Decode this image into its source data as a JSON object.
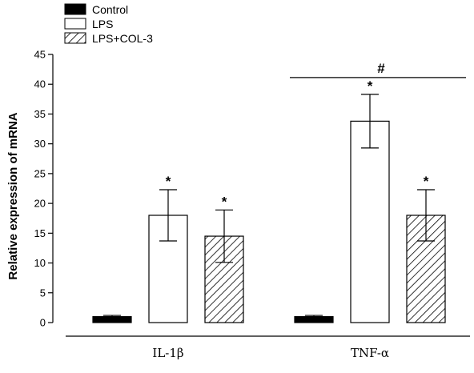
{
  "chart_data": {
    "type": "bar",
    "title": "",
    "xlabel": "",
    "ylabel": "Relative expression of mRNA",
    "ylim": [
      0,
      45
    ],
    "yticks": [
      0,
      5,
      10,
      15,
      20,
      25,
      30,
      35,
      40,
      45
    ],
    "grid": false,
    "legend_position": "top-left",
    "categories": [
      "IL-1β",
      "TNF-α"
    ],
    "series": [
      {
        "name": "Control",
        "fill": "solid",
        "color": "#000000",
        "values": [
          1.0,
          1.0
        ],
        "errors": [
          0.2,
          0.2
        ],
        "annotations": [
          "",
          ""
        ]
      },
      {
        "name": "LPS",
        "fill": "open",
        "color": "#ffffff",
        "values": [
          18.0,
          33.8
        ],
        "errors": [
          4.3,
          4.5
        ],
        "annotations": [
          "*",
          "*"
        ]
      },
      {
        "name": "LPS+COL-3",
        "fill": "hatched",
        "color": "#ffffff",
        "values": [
          14.5,
          18.0
        ],
        "errors": [
          4.4,
          4.3
        ],
        "annotations": [
          "*",
          "*"
        ]
      }
    ],
    "comparison_markers": [
      {
        "category": "TNF-α",
        "from_series": "LPS",
        "to_series": "LPS+COL-3",
        "label": "#"
      }
    ]
  }
}
